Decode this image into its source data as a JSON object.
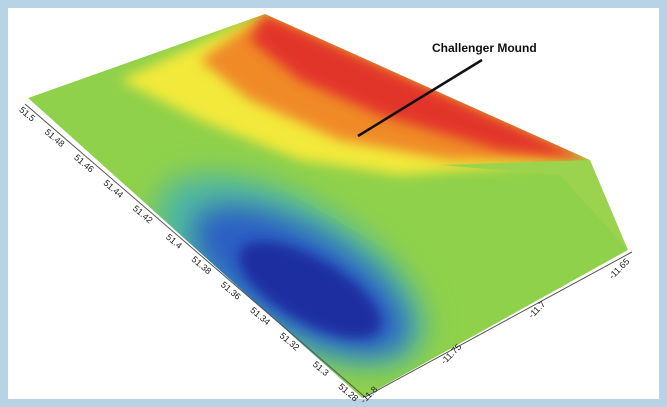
{
  "annotation": "Challenger Mound",
  "left_axis": {
    "labels": [
      "51.5",
      "51.48",
      "51.46",
      "51.44",
      "51.42",
      "51.4",
      "51.38",
      "51.36",
      "51.34",
      "51.32",
      "51.3",
      "51.28"
    ]
  },
  "bottom_axis": {
    "labels": [
      "-11.8",
      "-11.75",
      "-11.7",
      "-11.65"
    ]
  }
}
